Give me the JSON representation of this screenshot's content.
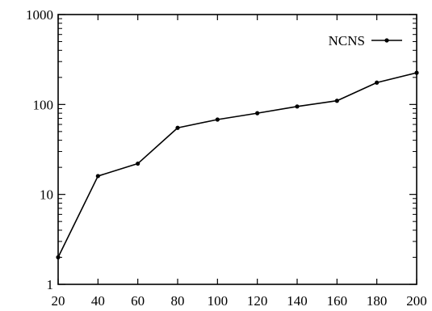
{
  "chart_data": {
    "type": "line",
    "title": "",
    "xlabel": "",
    "ylabel": "",
    "x": [
      20,
      40,
      60,
      80,
      100,
      120,
      140,
      160,
      180,
      200
    ],
    "series": [
      {
        "name": "NCNS",
        "values": [
          2,
          16,
          22,
          55,
          68,
          80,
          95,
          110,
          175,
          225
        ]
      }
    ],
    "xlim": [
      20,
      200
    ],
    "ylim": [
      1,
      1000
    ],
    "y_scale": "log",
    "x_ticks": [
      "20",
      "40",
      "60",
      "80",
      "100",
      "120",
      "140",
      "160",
      "180",
      "200"
    ],
    "y_ticks": [
      "1",
      "10",
      "100",
      "1000"
    ],
    "grid": false,
    "legend_position": "top-right",
    "line_color": "#000000"
  }
}
